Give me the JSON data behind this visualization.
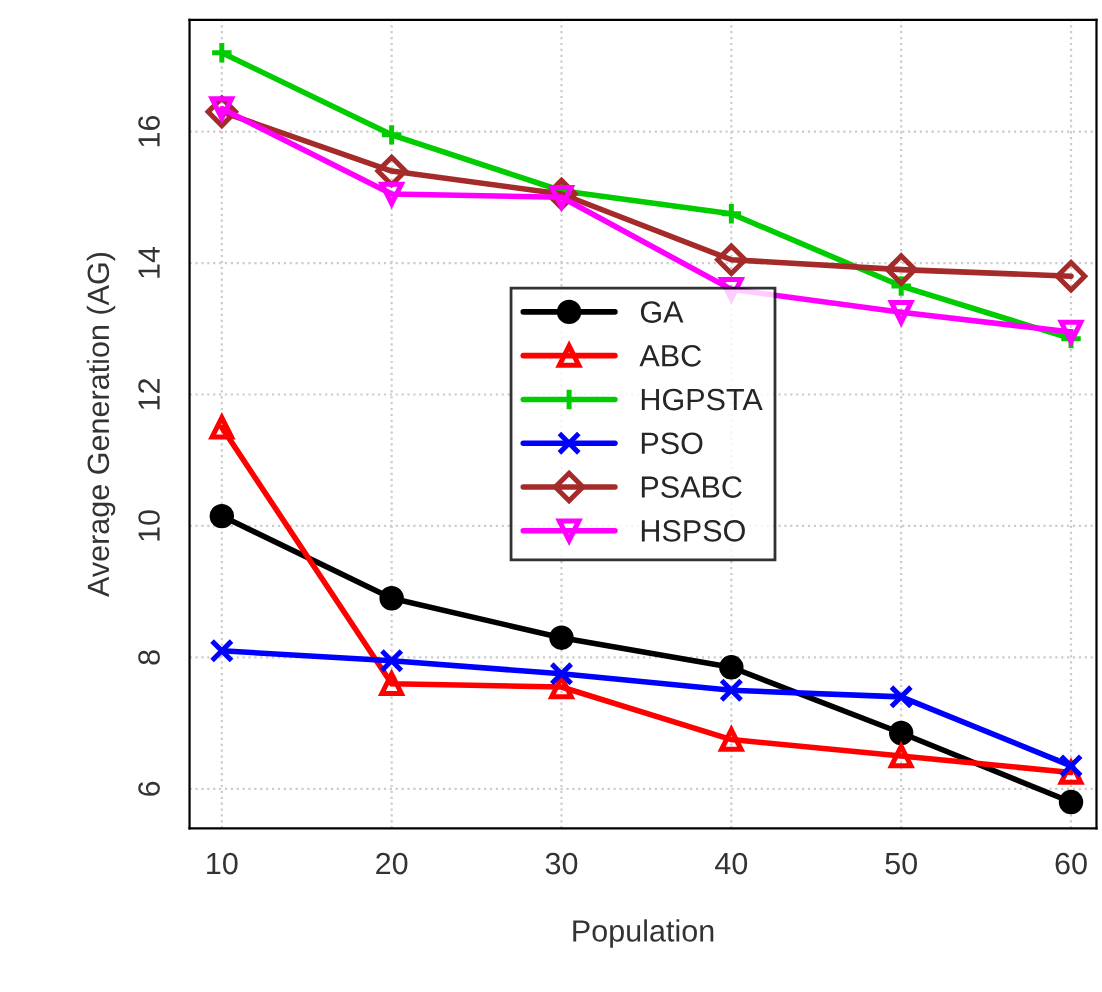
{
  "chart_data": {
    "type": "line",
    "xlabel": "Population",
    "ylabel": "Average Generation (AG)",
    "x": [
      10,
      20,
      30,
      40,
      50,
      60
    ],
    "series": [
      {
        "name": "GA",
        "color": "#000000",
        "marker": "circle",
        "values": [
          10.15,
          8.9,
          8.3,
          7.85,
          6.85,
          5.8
        ]
      },
      {
        "name": "ABC",
        "color": "#ff0000",
        "marker": "triangle",
        "values": [
          11.5,
          7.6,
          7.55,
          6.75,
          6.5,
          6.25
        ]
      },
      {
        "name": "HGPSTA",
        "color": "#00cc00",
        "marker": "plus",
        "values": [
          17.2,
          15.95,
          15.1,
          14.75,
          13.65,
          12.85
        ]
      },
      {
        "name": "PSO",
        "color": "#0000ff",
        "marker": "cross",
        "values": [
          8.1,
          7.95,
          7.75,
          7.5,
          7.4,
          6.35
        ]
      },
      {
        "name": "PSABC",
        "color": "#a52a2a",
        "marker": "diamond",
        "values": [
          16.3,
          15.4,
          15.05,
          14.05,
          13.9,
          13.8
        ]
      },
      {
        "name": "HSPSO",
        "color": "#ff00ff",
        "marker": "triangle_down",
        "values": [
          16.35,
          15.05,
          15.0,
          13.6,
          13.25,
          12.95
        ]
      }
    ],
    "xlim": [
      8.1,
      61.5
    ],
    "xticks": [
      10,
      20,
      30,
      40,
      50,
      60
    ],
    "ylim": [
      5.4,
      17.7
    ],
    "yticks": [
      6,
      8,
      10,
      12,
      14,
      16
    ],
    "grid": true,
    "legend": "center",
    "line_style": "solid"
  }
}
